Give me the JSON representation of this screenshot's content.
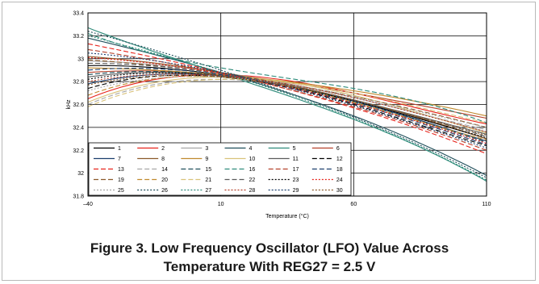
{
  "figure": {
    "caption_line1": "Figure 3. Low Frequency Oscillator (LFO) Value Across",
    "caption_line2": "Temperature With REG27 = 2.5 V"
  },
  "chart_data": {
    "type": "line",
    "xlabel": "Temperature (°C)",
    "ylabel": "kHz",
    "xlim": [
      -40,
      110
    ],
    "ylim": [
      31.8,
      33.4
    ],
    "x_ticks": [
      "–40",
      "10",
      "60",
      "110"
    ],
    "y_ticks": [
      "31.8",
      "32",
      "32.2",
      "32.4",
      "32.6",
      "32.8",
      "33",
      "33.2",
      "33.4"
    ],
    "grid": true,
    "legend_position": "bottom-left",
    "x": [
      -40,
      10,
      60,
      110
    ],
    "series": [
      {
        "name": "1",
        "color": "#000000",
        "dash": "solid",
        "values": [
          32.94,
          32.86,
          32.63,
          32.3
        ]
      },
      {
        "name": "2",
        "color": "#e8231b",
        "dash": "solid",
        "values": [
          32.65,
          32.86,
          32.7,
          32.43
        ]
      },
      {
        "name": "3",
        "color": "#a6a6a6",
        "dash": "solid",
        "values": [
          32.98,
          32.88,
          32.66,
          32.36
        ]
      },
      {
        "name": "4",
        "color": "#1f4e5a",
        "dash": "solid",
        "values": [
          33.18,
          32.88,
          32.5,
          31.98
        ]
      },
      {
        "name": "5",
        "color": "#2e8b7a",
        "dash": "solid",
        "values": [
          33.27,
          32.87,
          32.47,
          31.93
        ]
      },
      {
        "name": "6",
        "color": "#b5402a",
        "dash": "solid",
        "values": [
          32.88,
          32.86,
          32.7,
          32.48
        ]
      },
      {
        "name": "7",
        "color": "#1b3f6e",
        "dash": "solid",
        "values": [
          32.78,
          32.85,
          32.63,
          32.28
        ]
      },
      {
        "name": "8",
        "color": "#8b5a2b",
        "dash": "solid",
        "values": [
          33.02,
          32.88,
          32.64,
          32.3
        ]
      },
      {
        "name": "9",
        "color": "#c08a2e",
        "dash": "solid",
        "values": [
          32.92,
          32.86,
          32.72,
          32.5
        ]
      },
      {
        "name": "10",
        "color": "#d9c27a",
        "dash": "solid",
        "values": [
          32.62,
          32.84,
          32.68,
          32.35
        ]
      },
      {
        "name": "11",
        "color": "#5b5b5b",
        "dash": "solid",
        "values": [
          32.84,
          32.85,
          32.64,
          32.34
        ]
      },
      {
        "name": "12",
        "color": "#000000",
        "dash": "dashed",
        "values": [
          32.74,
          32.84,
          32.6,
          32.24
        ]
      },
      {
        "name": "13",
        "color": "#e8231b",
        "dash": "dashed",
        "values": [
          33.13,
          32.88,
          32.57,
          32.17
        ]
      },
      {
        "name": "14",
        "color": "#a6a6a6",
        "dash": "dashed",
        "values": [
          32.6,
          32.82,
          32.66,
          32.38
        ]
      },
      {
        "name": "15",
        "color": "#1f4e5a",
        "dash": "dashed",
        "values": [
          32.86,
          32.85,
          32.62,
          32.27
        ]
      },
      {
        "name": "16",
        "color": "#2e8b7a",
        "dash": "dashed",
        "values": [
          33.22,
          32.92,
          32.74,
          32.44
        ]
      },
      {
        "name": "17",
        "color": "#b5402a",
        "dash": "dashed",
        "values": [
          33.08,
          32.87,
          32.58,
          32.2
        ]
      },
      {
        "name": "18",
        "color": "#1b3f6e",
        "dash": "dashed",
        "values": [
          32.9,
          32.86,
          32.61,
          32.25
        ]
      },
      {
        "name": "19",
        "color": "#8b5a2b",
        "dash": "dashed",
        "values": [
          32.99,
          32.87,
          32.67,
          32.4
        ]
      },
      {
        "name": "20",
        "color": "#c08a2e",
        "dash": "dashed",
        "values": [
          32.68,
          32.84,
          32.62,
          32.29
        ]
      },
      {
        "name": "21",
        "color": "#d9c27a",
        "dash": "dashed",
        "values": [
          32.58,
          32.82,
          32.7,
          32.44
        ]
      },
      {
        "name": "22",
        "color": "#5b5b5b",
        "dash": "dashed",
        "values": [
          32.96,
          32.87,
          32.64,
          32.32
        ]
      },
      {
        "name": "23",
        "color": "#000000",
        "dash": "dotted",
        "values": [
          32.82,
          32.85,
          32.63,
          32.31
        ]
      },
      {
        "name": "24",
        "color": "#e8231b",
        "dash": "dotted",
        "values": [
          33.01,
          32.87,
          32.61,
          32.26
        ]
      },
      {
        "name": "25",
        "color": "#a6a6a6",
        "dash": "dotted",
        "values": [
          32.72,
          32.84,
          32.67,
          32.4
        ]
      },
      {
        "name": "26",
        "color": "#1f4e5a",
        "dash": "dotted",
        "values": [
          33.24,
          32.9,
          32.49,
          31.96
        ]
      },
      {
        "name": "27",
        "color": "#2e8b7a",
        "dash": "dotted",
        "values": [
          33.2,
          32.88,
          32.48,
          31.94
        ]
      },
      {
        "name": "28",
        "color": "#b5402a",
        "dash": "dotted",
        "values": [
          32.8,
          32.85,
          32.66,
          32.36
        ]
      },
      {
        "name": "29",
        "color": "#1b3f6e",
        "dash": "dotted",
        "values": [
          33.05,
          32.88,
          32.59,
          32.22
        ]
      },
      {
        "name": "30",
        "color": "#8b5a2b",
        "dash": "dotted",
        "values": [
          32.77,
          32.84,
          32.64,
          32.33
        ]
      }
    ]
  }
}
